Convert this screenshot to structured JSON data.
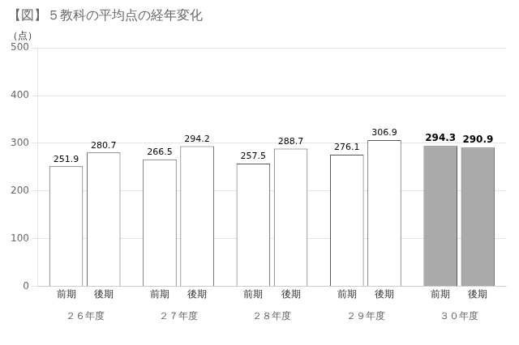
{
  "chart_data": {
    "type": "bar",
    "title": "【図】５教科の平均点の経年変化",
    "ylabel": "（点）",
    "categories": [
      "２６年度",
      "２７年度",
      "２８年度",
      "２９年度",
      "３０年度"
    ],
    "series": [
      {
        "name": "前期",
        "values": [
          251.9,
          266.5,
          257.5,
          276.1,
          294.3
        ],
        "colors": [
          "#ffffff",
          "#ffffff",
          "#ffffff",
          "#ffffff",
          "#aaaaaa"
        ]
      },
      {
        "name": "後期",
        "values": [
          280.7,
          294.2,
          288.7,
          306.9,
          290.9
        ],
        "colors": [
          "#ffffff",
          "#ffffff",
          "#ffffff",
          "#ffffff",
          "#aaaaaa"
        ]
      }
    ],
    "ylim": [
      0,
      500
    ],
    "yticks": [
      0,
      100,
      200,
      300,
      400,
      500
    ],
    "grid": true,
    "data_labels": true
  }
}
